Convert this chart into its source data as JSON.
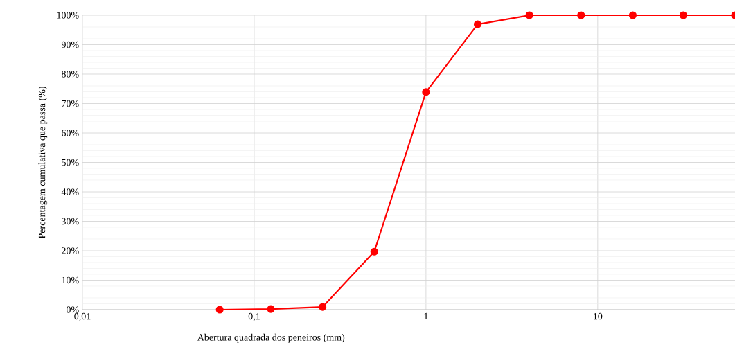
{
  "chart_data": {
    "type": "line",
    "xlabel": "Abertura quadrada dos peneiros (mm)",
    "ylabel": "Percentagem cumulativa  que passa (%)",
    "log": "x",
    "grid": true,
    "marker": "circle",
    "line_style": "solid",
    "xlim": [
      0.01,
      63
    ],
    "xticks": [
      {
        "value": 0.01,
        "label": "0,01"
      },
      {
        "value": 0.1,
        "label": "0,1"
      },
      {
        "value": 1,
        "label": "1"
      },
      {
        "value": 10,
        "label": "10"
      }
    ],
    "ylim": [
      0,
      100
    ],
    "yticks": [
      {
        "value": 0,
        "label": "0%"
      },
      {
        "value": 10,
        "label": "10%"
      },
      {
        "value": 20,
        "label": "20%"
      },
      {
        "value": 30,
        "label": "30%"
      },
      {
        "value": 40,
        "label": "40%"
      },
      {
        "value": 50,
        "label": "50%"
      },
      {
        "value": 60,
        "label": "60%"
      },
      {
        "value": 70,
        "label": "70%"
      },
      {
        "value": 80,
        "label": "80%"
      },
      {
        "value": 90,
        "label": "90%"
      },
      {
        "value": 100,
        "label": "100%"
      }
    ],
    "x": [
      0.063,
      0.125,
      0.25,
      0.5,
      1,
      2,
      4,
      8,
      16,
      31.5,
      63
    ],
    "series": [
      {
        "color": "#ff0000",
        "values": [
          0,
          0.2,
          0.9,
          19.7,
          73.9,
          96.9,
          100,
          100,
          100,
          100,
          100
        ]
      }
    ]
  }
}
